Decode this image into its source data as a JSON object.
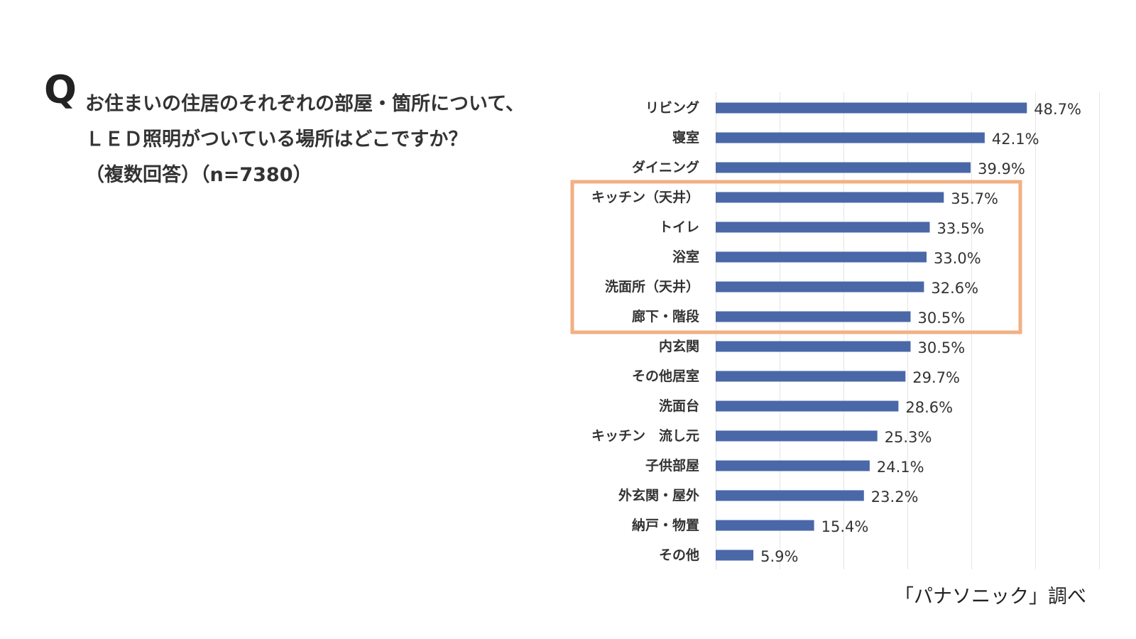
{
  "question": {
    "mark": "Q",
    "lines": [
      "お住まいの住居のそれぞれの部屋・箇所について、",
      "ＬＥＤ照明がついている場所はどこですか？",
      "（複数回答）（n=7380）"
    ]
  },
  "source": "「パナソニック」調べ",
  "colors": {
    "bar": "#4a67a8",
    "highlight_box": "#f2b083",
    "grid": "#e6e6e6"
  },
  "chart_data": {
    "type": "bar",
    "orientation": "horizontal",
    "categories": [
      "リビング",
      "寝室",
      "ダイニング",
      "キッチン（天井）",
      "トイレ",
      "浴室",
      "洗面所（天井）",
      "廊下・階段",
      "内玄関",
      "その他居室",
      "洗面台",
      "キッチン　流し元",
      "子供部屋",
      "外玄関・屋外",
      "納戸・物置",
      "その他"
    ],
    "values": [
      48.7,
      42.1,
      39.9,
      35.7,
      33.5,
      33.0,
      32.6,
      30.5,
      30.5,
      29.7,
      28.6,
      25.3,
      24.1,
      23.2,
      15.4,
      5.9
    ],
    "value_labels": [
      "48.7%",
      "42.1%",
      "39.9%",
      "35.7%",
      "33.5%",
      "33.0%",
      "32.6%",
      "30.5%",
      "30.5%",
      "29.7%",
      "28.6%",
      "25.3%",
      "24.1%",
      "23.2%",
      "15.4%",
      "5.9%"
    ],
    "xlim": [
      0,
      60
    ],
    "grid": true,
    "highlighted_categories": [
      "キッチン（天井）",
      "トイレ",
      "浴室",
      "洗面所（天井）",
      "廊下・階段"
    ]
  }
}
